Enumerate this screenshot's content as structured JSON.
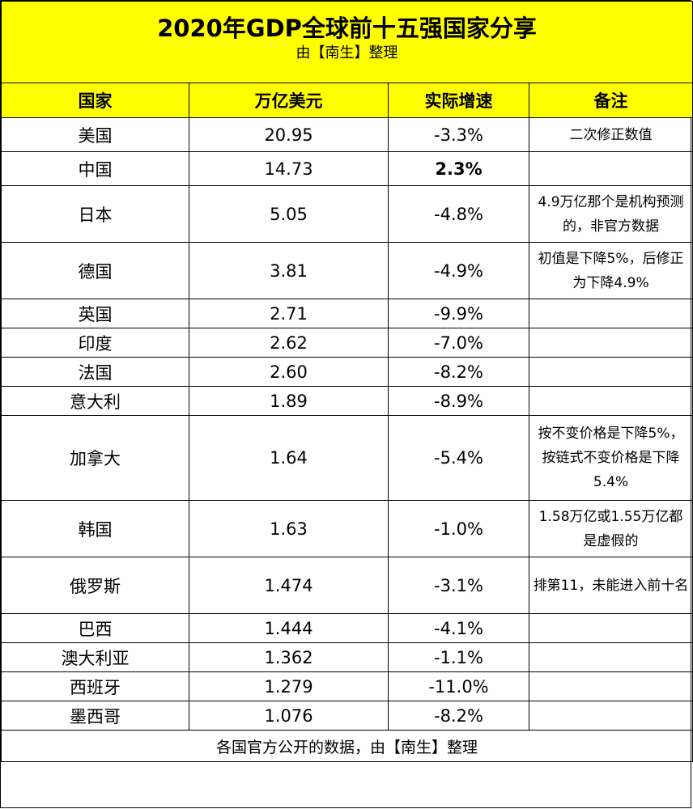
{
  "title": "2020年GDP全球前十五强国家分享",
  "subtitle": "由【南生】整理",
  "headers": [
    "国家",
    "万亿美元",
    "实际增速",
    "备注"
  ],
  "rows": [
    {
      "country": "美国",
      "gdp": "20.95",
      "growth": "-3.3%",
      "note": "二次修正数值"
    },
    {
      "country": "中国",
      "gdp": "14.73",
      "growth": "2.3%",
      "note": ""
    },
    {
      "country": "日本",
      "gdp": "5.05",
      "growth": "-4.8%",
      "note": "4.9万亿那个是机构预测的，非官方数据"
    },
    {
      "country": "德国",
      "gdp": "3.81",
      "growth": "-4.9%",
      "note": "初值是下降5%，后修正为下降4.9%"
    },
    {
      "country": "英国",
      "gdp": "2.71",
      "growth": "-9.9%",
      "note": ""
    },
    {
      "country": "印度",
      "gdp": "2.62",
      "growth": "-7.0%",
      "note": ""
    },
    {
      "country": "法国",
      "gdp": "2.60",
      "growth": "-8.2%",
      "note": ""
    },
    {
      "country": "意大利",
      "gdp": "1.89",
      "growth": "-8.9%",
      "note": ""
    },
    {
      "country": "加拿大",
      "gdp": "1.64",
      "growth": "-5.4%",
      "note": "按不变价格是下降5%，按链式不变价格是下降5.4%"
    },
    {
      "country": "韩国",
      "gdp": "1.63",
      "growth": "-1.0%",
      "note": "1.58万亿或1.55万亿都是虚假的"
    },
    {
      "country": "俄罗斯",
      "gdp": "1.474",
      "growth": "-3.1%",
      "note": "排第11，未能进入前十名"
    },
    {
      "country": "巴西",
      "gdp": "1.444",
      "growth": "-4.1%",
      "note": ""
    },
    {
      "country": "澳大利亚",
      "gdp": "1.362",
      "growth": "-1.1%",
      "note": ""
    },
    {
      "country": "西班牙",
      "gdp": "1.279",
      "growth": "-11.0%",
      "note": ""
    },
    {
      "country": "墨西哥",
      "gdp": "1.076",
      "growth": "-8.2%",
      "note": ""
    }
  ],
  "footer": "各国官方公开的数据，由【南生】整理",
  "colors": {
    "header_bg": "#ffff00",
    "border": "#000000"
  }
}
